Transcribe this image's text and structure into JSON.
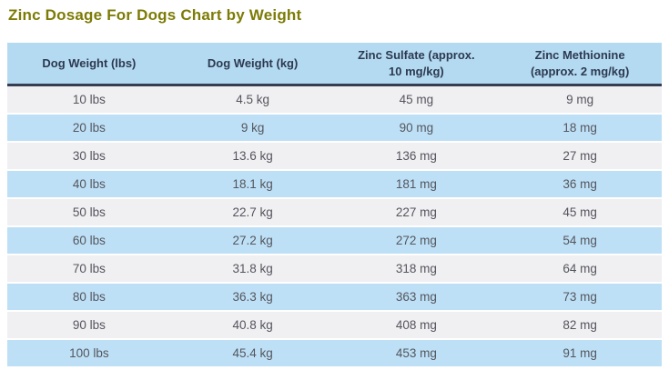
{
  "page": {
    "title": "Zinc Dosage For Dogs Chart by Weight"
  },
  "colors": {
    "title_text": "#7d7b05",
    "header_bg": "#b4daf2",
    "header_text": "#2c3a50",
    "header_border": "#363d52",
    "row_gray_bg": "#f0eff1",
    "row_blue_bg": "#bee0f6",
    "row_text": "#54565e",
    "page_bg": "#ffffff"
  },
  "table": {
    "columns": [
      {
        "label": "Dog Weight (lbs)"
      },
      {
        "label": "Dog Weight (kg)"
      },
      {
        "label": "Zinc Sulfate (approx. 10 mg/kg)"
      },
      {
        "label": "Zinc Methionine (approx. 2 mg/kg)"
      }
    ],
    "rows": [
      [
        "10 lbs",
        "4.5 kg",
        "45 mg",
        "9 mg"
      ],
      [
        "20 lbs",
        "9 kg",
        "90 mg",
        "18 mg"
      ],
      [
        "30 lbs",
        "13.6 kg",
        "136 mg",
        "27 mg"
      ],
      [
        "40 lbs",
        "18.1 kg",
        "181 mg",
        "36 mg"
      ],
      [
        "50 lbs",
        "22.7 kg",
        "227 mg",
        "45 mg"
      ],
      [
        "60 lbs",
        "27.2 kg",
        "272 mg",
        "54 mg"
      ],
      [
        "70 lbs",
        "31.8 kg",
        "318 mg",
        "64 mg"
      ],
      [
        "80 lbs",
        "36.3 kg",
        "363 mg",
        "73 mg"
      ],
      [
        "90 lbs",
        "40.8 kg",
        "408 mg",
        "82 mg"
      ],
      [
        "100 lbs",
        "45.4 kg",
        "453 mg",
        "91 mg"
      ]
    ]
  },
  "chart_data": {
    "type": "table",
    "title": "Zinc Dosage For Dogs Chart by Weight",
    "columns": [
      "Dog Weight (lbs)",
      "Dog Weight (kg)",
      "Zinc Sulfate (approx. 10 mg/kg)",
      "Zinc Methionine (approx. 2 mg/kg)"
    ],
    "dog_weight_lbs": [
      10,
      20,
      30,
      40,
      50,
      60,
      70,
      80,
      90,
      100
    ],
    "dog_weight_kg": [
      4.5,
      9,
      13.6,
      18.1,
      22.7,
      27.2,
      31.8,
      36.3,
      40.8,
      45.4
    ],
    "zinc_sulfate_mg": [
      45,
      90,
      136,
      181,
      227,
      272,
      318,
      363,
      408,
      453
    ],
    "zinc_methionine_mg": [
      9,
      18,
      27,
      36,
      45,
      54,
      64,
      73,
      82,
      91
    ]
  }
}
